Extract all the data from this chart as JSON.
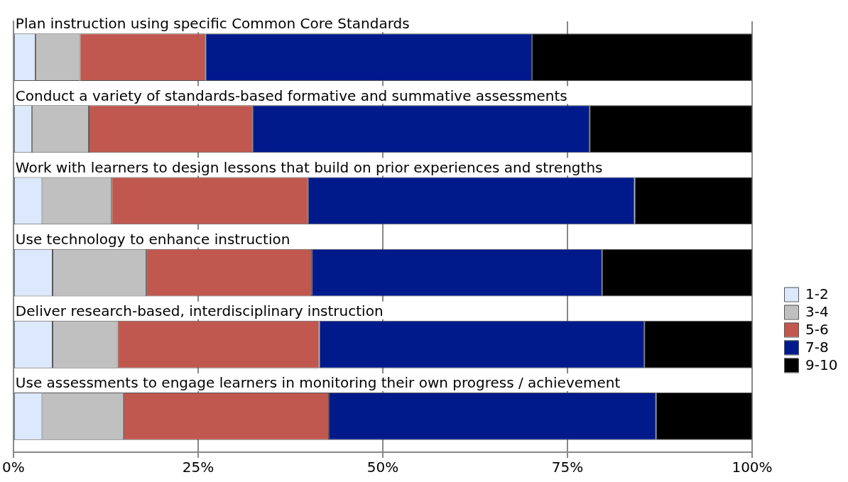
{
  "chart_data": {
    "type": "bar",
    "orientation": "horizontal",
    "stacked": true,
    "categories": [
      "Plan instruction using specific Common Core Standards",
      "Conduct a variety of standards-based formative and summative assessments",
      "Work with learners to design lessons that build on prior experiences and strengths",
      "Use technology to enhance instruction",
      "Deliver research-based, interdisciplinary instruction",
      "Use assessments to engage learners in monitoring their own progress / achievement"
    ],
    "series": [
      {
        "name": "1-2",
        "color": "#dce8fb",
        "values": [
          3,
          2.5,
          3.9,
          5.3,
          5.3,
          3.9
        ]
      },
      {
        "name": "3-4",
        "color": "#c0c0c0",
        "values": [
          6,
          7.7,
          9.4,
          12.7,
          8.8,
          11
        ]
      },
      {
        "name": "5-6",
        "color": "#c0584f",
        "values": [
          17,
          22.2,
          26.6,
          22.4,
          27.3,
          27.8
        ]
      },
      {
        "name": "7-8",
        "color": "#001a8c",
        "values": [
          44.2,
          45.6,
          44.2,
          39.3,
          44,
          44.3
        ]
      },
      {
        "name": "9-10",
        "color": "#000000",
        "values": [
          29.8,
          22,
          15.9,
          20.3,
          14.6,
          13
        ]
      }
    ],
    "xlim": [
      0,
      100
    ],
    "xticks": [
      {
        "value": 0,
        "label": "0%"
      },
      {
        "value": 25,
        "label": "25%"
      },
      {
        "value": 50,
        "label": "50%"
      },
      {
        "value": 75,
        "label": "75%"
      },
      {
        "value": 100,
        "label": "100%"
      }
    ],
    "grid": "x",
    "legend": "right"
  }
}
